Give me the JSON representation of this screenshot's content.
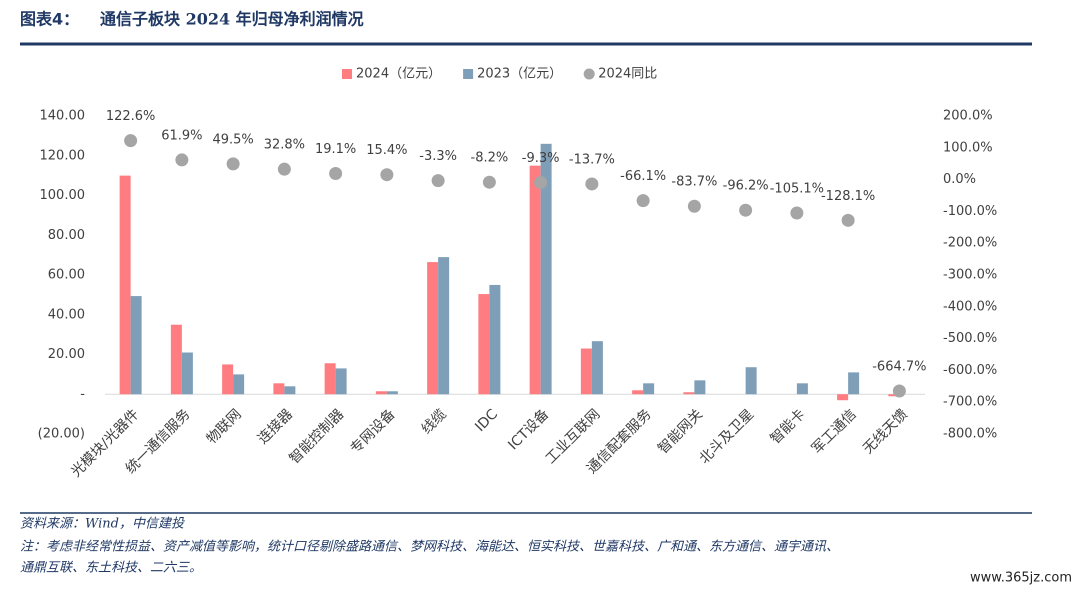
{
  "chart_data": {
    "type": "bar",
    "figure_label": "图表4：",
    "title": "通信子板块 2024 年归母净利润情况",
    "categories": [
      "光模块/光器件",
      "统一通信服务",
      "物联网",
      "连接器",
      "智能控制器",
      "专网设备",
      "线缆",
      "IDC",
      "ICT设备",
      "工业互联网",
      "通信配套服务",
      "智能网关",
      "北斗及卫星",
      "智能卡",
      "军工通信",
      "无线天馈"
    ],
    "series": [
      {
        "name": "2024（亿元）",
        "type": "bar",
        "color": "#ff7c80",
        "values": [
          110,
          35,
          15,
          5.5,
          15.6,
          1.5,
          66.5,
          50.4,
          115,
          23,
          2,
          1,
          0,
          0,
          -3,
          -1
        ]
      },
      {
        "name": "2023（亿元）",
        "type": "bar",
        "color": "#7f9fb9",
        "values": [
          49.4,
          21,
          10,
          4,
          13,
          1.5,
          69,
          55,
          126,
          26.7,
          5.5,
          7,
          13.6,
          5.5,
          11,
          0
        ]
      },
      {
        "name": "2024同比",
        "type": "scatter",
        "axis": "y2",
        "color": "#a5a5a5",
        "values": [
          122.6,
          61.9,
          49.5,
          32.8,
          19.1,
          15.4,
          -3.3,
          -8.2,
          -9.3,
          -13.7,
          -66.1,
          -83.7,
          -96.2,
          -105.1,
          -128.1,
          -664.7
        ],
        "value_labels": [
          "122.6%",
          "61.9%",
          "49.5%",
          "32.8%",
          "19.1%",
          "15.4%",
          "-3.3%",
          "-8.2%",
          "-9.3%",
          "-13.7%",
          "-66.1%",
          "-83.7%",
          "-96.2%",
          "-105.1%",
          "-128.1%",
          "-664.7%"
        ]
      }
    ],
    "ylim": [
      -20,
      140
    ],
    "yticks": [
      {
        "value": -20,
        "label": "(20.00)"
      },
      {
        "value": 0,
        "label": "-"
      },
      {
        "value": 20,
        "label": "20.00"
      },
      {
        "value": 40,
        "label": "40.00"
      },
      {
        "value": 60,
        "label": "60.00"
      },
      {
        "value": 80,
        "label": "80.00"
      },
      {
        "value": 100,
        "label": "100.00"
      },
      {
        "value": 120,
        "label": "120.00"
      },
      {
        "value": 140,
        "label": "140.00"
      }
    ],
    "y2lim": [
      -800,
      200
    ],
    "y2ticks": [
      {
        "value": -800,
        "label": "-800.0%"
      },
      {
        "value": -700,
        "label": "-700.0%"
      },
      {
        "value": -600,
        "label": "-600.0%"
      },
      {
        "value": -500,
        "label": "-500.0%"
      },
      {
        "value": -400,
        "label": "-400.0%"
      },
      {
        "value": -300,
        "label": "-300.0%"
      },
      {
        "value": -200,
        "label": "-200.0%"
      },
      {
        "value": -100,
        "label": "-100.0%"
      },
      {
        "value": 0,
        "label": "0.0%"
      },
      {
        "value": 100,
        "label": "100.0%"
      },
      {
        "value": 200,
        "label": "200.0%"
      }
    ],
    "legend": "top",
    "grid": false,
    "source": "资料来源：Wind，中信建投",
    "note": [
      "注：考虑非经常性损益、资产减值等影响，统计口径剔除盛路通信、梦网科技、海能达、恒实科技、世嘉科技、广和通、东方通信、通宇通讯、",
      "通鼎互联、东土科技、二六三。"
    ],
    "watermark": "www.365jz.com"
  }
}
